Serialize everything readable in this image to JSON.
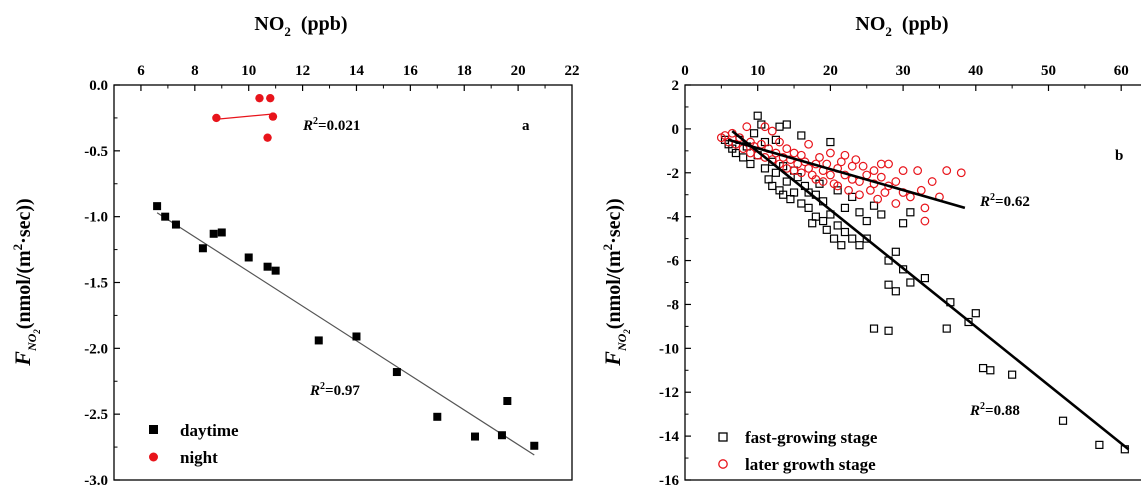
{
  "chart_data": [
    {
      "id": "a",
      "type": "scatter",
      "panel_label": "a",
      "xlabel": "NO2 (ppb)",
      "ylabel": "FNO2(nmol/(m2·sec))",
      "xlabel_parts": {
        "base": "NO",
        "sub": "2",
        "rest": "  (ppb)"
      },
      "ylabel_parts": {
        "f": "F",
        "fsub": "NO",
        "fsub2": "2",
        "open": "(nmol/(m",
        "sup": "2",
        "close": "·sec))"
      },
      "x_axis_position": "top",
      "xlim": [
        5,
        22
      ],
      "ylim": [
        -3.0,
        0.0
      ],
      "xticks": [
        6,
        8,
        10,
        12,
        14,
        16,
        18,
        20,
        22
      ],
      "yticks": [
        0.0,
        -0.5,
        -1.0,
        -1.5,
        -2.0,
        -2.5,
        -3.0
      ],
      "ytick_labels": [
        "0.0",
        "-0.5",
        "-1.0",
        "-1.5",
        "-2.0",
        "-2.5",
        "-3.0"
      ],
      "legend_position": "bottom-left",
      "series": [
        {
          "name": "daytime",
          "color": "#000000",
          "marker": "filled-square",
          "points": [
            [
              6.6,
              -0.92
            ],
            [
              6.9,
              -1.0
            ],
            [
              7.3,
              -1.06
            ],
            [
              8.3,
              -1.24
            ],
            [
              8.7,
              -1.13
            ],
            [
              9.0,
              -1.12
            ],
            [
              10.0,
              -1.31
            ],
            [
              10.7,
              -1.38
            ],
            [
              11.0,
              -1.41
            ],
            [
              12.6,
              -1.94
            ],
            [
              14.0,
              -1.91
            ],
            [
              15.5,
              -2.18
            ],
            [
              17.0,
              -2.52
            ],
            [
              18.4,
              -2.67
            ],
            [
              19.4,
              -2.66
            ],
            [
              19.6,
              -2.4
            ],
            [
              20.6,
              -2.74
            ]
          ],
          "fit": {
            "x": [
              6.6,
              20.6
            ],
            "y": [
              -0.97,
              -2.81
            ]
          },
          "r2_label": {
            "r": "R",
            "sup": "2",
            "value": "=0.97"
          }
        },
        {
          "name": "night",
          "color": "#e8141b",
          "marker": "filled-circle",
          "points": [
            [
              8.8,
              -0.25
            ],
            [
              10.4,
              -0.1
            ],
            [
              10.8,
              -0.1
            ],
            [
              10.7,
              -0.4
            ],
            [
              10.9,
              -0.24
            ]
          ],
          "fit": {
            "x": [
              8.8,
              10.9
            ],
            "y": [
              -0.26,
              -0.22
            ]
          },
          "r2_label": {
            "r": "R",
            "sup": "2",
            "value": "=0.021"
          }
        }
      ]
    },
    {
      "id": "b",
      "type": "scatter",
      "panel_label": "b",
      "xlabel": "NO2 (ppb)",
      "ylabel": "FNO2(nmol/(m2·sec))",
      "xlabel_parts": {
        "base": "NO",
        "sub": "2",
        "rest": "  (ppb)"
      },
      "ylabel_parts": {
        "f": "F",
        "fsub": "NO",
        "fsub2": "2",
        "open": "(nmol/(m",
        "sup": "2",
        "close": "·sec))"
      },
      "x_axis_position": "top",
      "xlim": [
        0,
        63
      ],
      "ylim": [
        -16,
        2
      ],
      "xticks": [
        0,
        10,
        20,
        30,
        40,
        50,
        60
      ],
      "yticks": [
        2,
        0,
        -2,
        -4,
        -6,
        -8,
        -10,
        -12,
        -14,
        -16
      ],
      "ytick_labels": [
        "2",
        "0",
        "-2",
        "-4",
        "-6",
        "-8",
        "-10",
        "-12",
        "-14",
        "-16"
      ],
      "legend_position": "bottom-left",
      "series": [
        {
          "name": "fast-growing stage",
          "color": "#000000",
          "marker": "open-square",
          "points": [
            [
              5.5,
              -0.5
            ],
            [
              6,
              -0.7
            ],
            [
              6.5,
              -0.9
            ],
            [
              7,
              -1.1
            ],
            [
              7.5,
              -0.5
            ],
            [
              8,
              -1.3
            ],
            [
              8.5,
              -0.8
            ],
            [
              9,
              -1.6
            ],
            [
              9.5,
              -0.2
            ],
            [
              10,
              0.6
            ],
            [
              10,
              -1.2
            ],
            [
              10.5,
              0.2
            ],
            [
              11,
              -1.8
            ],
            [
              11,
              -0.6
            ],
            [
              11.5,
              -2.3
            ],
            [
              12,
              -1.5
            ],
            [
              12,
              -2.6
            ],
            [
              12.5,
              -0.5
            ],
            [
              12.5,
              -2.0
            ],
            [
              13,
              -2.8
            ],
            [
              13,
              0.1
            ],
            [
              13.5,
              -1.7
            ],
            [
              13.5,
              -3.0
            ],
            [
              14,
              0.2
            ],
            [
              14,
              -2.4
            ],
            [
              14.5,
              -3.2
            ],
            [
              15,
              -1.9
            ],
            [
              15,
              -2.9
            ],
            [
              15.5,
              -2.2
            ],
            [
              16,
              -0.3
            ],
            [
              16,
              -3.4
            ],
            [
              16.5,
              -2.6
            ],
            [
              17,
              -2.9
            ],
            [
              17,
              -3.6
            ],
            [
              17.5,
              -4.3
            ],
            [
              18,
              -3.0
            ],
            [
              18,
              -4.0
            ],
            [
              18.5,
              -2.5
            ],
            [
              19,
              -4.2
            ],
            [
              19,
              -3.3
            ],
            [
              19.5,
              -4.6
            ],
            [
              20,
              -0.6
            ],
            [
              20,
              -3.9
            ],
            [
              20.5,
              -5.0
            ],
            [
              21,
              -4.4
            ],
            [
              21,
              -2.8
            ],
            [
              21.5,
              -5.3
            ],
            [
              22,
              -3.6
            ],
            [
              22,
              -4.7
            ],
            [
              23,
              -3.1
            ],
            [
              23,
              -5.0
            ],
            [
              24,
              -5.3
            ],
            [
              24,
              -3.8
            ],
            [
              25,
              -4.2
            ],
            [
              25,
              -5.0
            ],
            [
              26,
              -3.5
            ],
            [
              26,
              -9.1
            ],
            [
              27,
              -3.9
            ],
            [
              28,
              -6.0
            ],
            [
              28,
              -7.1
            ],
            [
              28,
              -9.2
            ],
            [
              29,
              -5.6
            ],
            [
              29,
              -7.4
            ],
            [
              30,
              -4.3
            ],
            [
              30,
              -6.4
            ],
            [
              31,
              -3.8
            ],
            [
              31,
              -7.0
            ],
            [
              33,
              -6.8
            ],
            [
              36,
              -9.1
            ],
            [
              36.5,
              -7.9
            ],
            [
              39,
              -8.8
            ],
            [
              40,
              -8.4
            ],
            [
              41,
              -10.9
            ],
            [
              42,
              -11.0
            ],
            [
              45,
              -11.2
            ],
            [
              52,
              -13.3
            ],
            [
              57,
              -14.4
            ],
            [
              60.5,
              -14.6
            ]
          ],
          "fit": {
            "x": [
              6.5,
              61
            ],
            "y": [
              -0.1,
              -14.6
            ]
          },
          "r2_label": {
            "r": "R",
            "sup": "2",
            "value": "=0.88"
          }
        },
        {
          "name": "later growth stage",
          "color": "#e8141b",
          "marker": "open-circle",
          "points": [
            [
              5,
              -0.4
            ],
            [
              5.5,
              -0.3
            ],
            [
              6,
              -0.6
            ],
            [
              6.5,
              -0.2
            ],
            [
              7,
              -0.7
            ],
            [
              7.5,
              -0.4
            ],
            [
              8,
              -0.9
            ],
            [
              8.5,
              0.1
            ],
            [
              9,
              -1.1
            ],
            [
              9,
              -0.6
            ],
            [
              9.5,
              -0.8
            ],
            [
              10,
              -1.2
            ],
            [
              10.5,
              -0.7
            ],
            [
              11,
              0.1
            ],
            [
              11,
              -1.3
            ],
            [
              11.5,
              -0.9
            ],
            [
              12,
              -1.4
            ],
            [
              12,
              -0.1
            ],
            [
              12.5,
              -1.1
            ],
            [
              13,
              -1.6
            ],
            [
              13,
              -0.6
            ],
            [
              13.5,
              -1.3
            ],
            [
              14,
              -0.9
            ],
            [
              14,
              -1.8
            ],
            [
              14.5,
              -1.4
            ],
            [
              15,
              -1.1
            ],
            [
              15,
              -1.9
            ],
            [
              15.5,
              -1.6
            ],
            [
              16,
              -1.2
            ],
            [
              16,
              -2.0
            ],
            [
              16.5,
              -1.5
            ],
            [
              17,
              -1.8
            ],
            [
              17,
              -0.7
            ],
            [
              17.5,
              -2.1
            ],
            [
              18,
              -1.6
            ],
            [
              18,
              -2.3
            ],
            [
              18.5,
              -1.3
            ],
            [
              19,
              -1.9
            ],
            [
              19,
              -2.4
            ],
            [
              19.5,
              -1.6
            ],
            [
              20,
              -2.1
            ],
            [
              20,
              -1.1
            ],
            [
              20.5,
              -2.5
            ],
            [
              21,
              -1.8
            ],
            [
              21,
              -2.6
            ],
            [
              21.5,
              -1.5
            ],
            [
              22,
              -2.1
            ],
            [
              22,
              -1.2
            ],
            [
              22.5,
              -2.8
            ],
            [
              23,
              -1.7
            ],
            [
              23,
              -2.3
            ],
            [
              23.5,
              -1.4
            ],
            [
              24,
              -2.4
            ],
            [
              24,
              -3.0
            ],
            [
              24.5,
              -1.7
            ],
            [
              25,
              -2.1
            ],
            [
              25.5,
              -2.8
            ],
            [
              26,
              -1.9
            ],
            [
              26,
              -2.5
            ],
            [
              26.5,
              -3.2
            ],
            [
              27,
              -1.6
            ],
            [
              27,
              -2.2
            ],
            [
              27.5,
              -2.9
            ],
            [
              28,
              -1.6
            ],
            [
              28,
              -2.6
            ],
            [
              29,
              -2.4
            ],
            [
              29,
              -3.4
            ],
            [
              30,
              -2.9
            ],
            [
              30,
              -1.9
            ],
            [
              31,
              -3.1
            ],
            [
              32,
              -1.9
            ],
            [
              32.5,
              -2.8
            ],
            [
              33,
              -3.6
            ],
            [
              33,
              -4.2
            ],
            [
              34,
              -2.4
            ],
            [
              35,
              -3.1
            ],
            [
              36,
              -1.9
            ],
            [
              38,
              -2.0
            ]
          ],
          "fit": {
            "x": [
              6,
              38.5
            ],
            "y": [
              -0.5,
              -3.6
            ]
          },
          "r2_label": {
            "r": "R",
            "sup": "2",
            "value": "=0.62"
          }
        }
      ]
    }
  ]
}
